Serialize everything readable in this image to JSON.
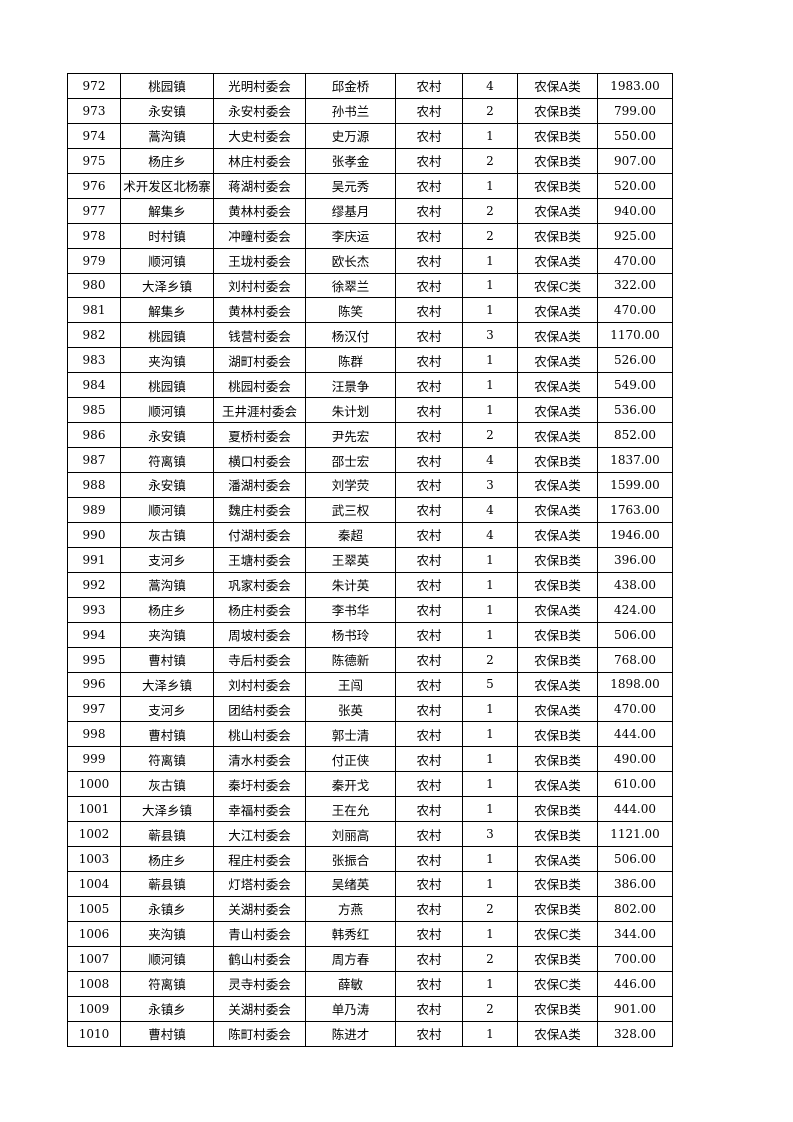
{
  "table": {
    "rows": [
      [
        "972",
        "桃园镇",
        "光明村委会",
        "邱金桥",
        "农村",
        "4",
        "农保A类",
        "1983.00"
      ],
      [
        "973",
        "永安镇",
        "永安村委会",
        "孙书兰",
        "农村",
        "2",
        "农保B类",
        "799.00"
      ],
      [
        "974",
        "蒿沟镇",
        "大史村委会",
        "史万源",
        "农村",
        "1",
        "农保B类",
        "550.00"
      ],
      [
        "975",
        "杨庄乡",
        "林庄村委会",
        "张孝金",
        "农村",
        "2",
        "农保B类",
        "907.00"
      ],
      [
        "976",
        "术开发区北杨寨",
        "蒋湖村委会",
        "吴元秀",
        "农村",
        "1",
        "农保B类",
        "520.00"
      ],
      [
        "977",
        "解集乡",
        "黄林村委会",
        "缪基月",
        "农村",
        "2",
        "农保A类",
        "940.00"
      ],
      [
        "978",
        "时村镇",
        "冲疃村委会",
        "李庆运",
        "农村",
        "2",
        "农保B类",
        "925.00"
      ],
      [
        "979",
        "顺河镇",
        "王垅村委会",
        "欧长杰",
        "农村",
        "1",
        "农保A类",
        "470.00"
      ],
      [
        "980",
        "大泽乡镇",
        "刘村村委会",
        "徐翠兰",
        "农村",
        "1",
        "农保C类",
        "322.00"
      ],
      [
        "981",
        "解集乡",
        "黄林村委会",
        "陈笑",
        "农村",
        "1",
        "农保A类",
        "470.00"
      ],
      [
        "982",
        "桃园镇",
        "钱营村委会",
        "杨汉付",
        "农村",
        "3",
        "农保A类",
        "1170.00"
      ],
      [
        "983",
        "夹沟镇",
        "湖町村委会",
        "陈群",
        "农村",
        "1",
        "农保A类",
        "526.00"
      ],
      [
        "984",
        "桃园镇",
        "桃园村委会",
        "汪景争",
        "农村",
        "1",
        "农保A类",
        "549.00"
      ],
      [
        "985",
        "顺河镇",
        "王井涯村委会",
        "朱计划",
        "农村",
        "1",
        "农保A类",
        "536.00"
      ],
      [
        "986",
        "永安镇",
        "夏桥村委会",
        "尹先宏",
        "农村",
        "2",
        "农保A类",
        "852.00"
      ],
      [
        "987",
        "符离镇",
        "横口村委会",
        "邵士宏",
        "农村",
        "4",
        "农保B类",
        "1837.00"
      ],
      [
        "988",
        "永安镇",
        "潘湖村委会",
        "刘学荧",
        "农村",
        "3",
        "农保A类",
        "1599.00"
      ],
      [
        "989",
        "顺河镇",
        "魏庄村委会",
        "武三权",
        "农村",
        "4",
        "农保A类",
        "1763.00"
      ],
      [
        "990",
        "灰古镇",
        "付湖村委会",
        "秦超",
        "农村",
        "4",
        "农保A类",
        "1946.00"
      ],
      [
        "991",
        "支河乡",
        "王塘村委会",
        "王翠英",
        "农村",
        "1",
        "农保B类",
        "396.00"
      ],
      [
        "992",
        "蒿沟镇",
        "巩家村委会",
        "朱计英",
        "农村",
        "1",
        "农保B类",
        "438.00"
      ],
      [
        "993",
        "杨庄乡",
        "杨庄村委会",
        "李书华",
        "农村",
        "1",
        "农保A类",
        "424.00"
      ],
      [
        "994",
        "夹沟镇",
        "周坡村委会",
        "杨书玲",
        "农村",
        "1",
        "农保B类",
        "506.00"
      ],
      [
        "995",
        "曹村镇",
        "寺后村委会",
        "陈德新",
        "农村",
        "2",
        "农保B类",
        "768.00"
      ],
      [
        "996",
        "大泽乡镇",
        "刘村村委会",
        "王闯",
        "农村",
        "5",
        "农保A类",
        "1898.00"
      ],
      [
        "997",
        "支河乡",
        "团结村委会",
        "张英",
        "农村",
        "1",
        "农保A类",
        "470.00"
      ],
      [
        "998",
        "曹村镇",
        "桃山村委会",
        "郭士清",
        "农村",
        "1",
        "农保B类",
        "444.00"
      ],
      [
        "999",
        "符离镇",
        "清水村委会",
        "付正侠",
        "农村",
        "1",
        "农保B类",
        "490.00"
      ],
      [
        "1000",
        "灰古镇",
        "秦圩村委会",
        "秦开戈",
        "农村",
        "1",
        "农保A类",
        "610.00"
      ],
      [
        "1001",
        "大泽乡镇",
        "幸福村委会",
        "王在允",
        "农村",
        "1",
        "农保B类",
        "444.00"
      ],
      [
        "1002",
        "蕲县镇",
        "大江村委会",
        "刘丽高",
        "农村",
        "3",
        "农保B类",
        "1121.00"
      ],
      [
        "1003",
        "杨庄乡",
        "程庄村委会",
        "张振合",
        "农村",
        "1",
        "农保A类",
        "506.00"
      ],
      [
        "1004",
        "蕲县镇",
        "灯塔村委会",
        "吴绪英",
        "农村",
        "1",
        "农保B类",
        "386.00"
      ],
      [
        "1005",
        "永镇乡",
        "关湖村委会",
        "方燕",
        "农村",
        "2",
        "农保B类",
        "802.00"
      ],
      [
        "1006",
        "夹沟镇",
        "青山村委会",
        "韩秀红",
        "农村",
        "1",
        "农保C类",
        "344.00"
      ],
      [
        "1007",
        "顺河镇",
        "鹤山村委会",
        "周方春",
        "农村",
        "2",
        "农保B类",
        "700.00"
      ],
      [
        "1008",
        "符离镇",
        "灵寺村委会",
        "薛敏",
        "农村",
        "1",
        "农保C类",
        "446.00"
      ],
      [
        "1009",
        "永镇乡",
        "关湖村委会",
        "单乃涛",
        "农村",
        "2",
        "农保B类",
        "901.00"
      ],
      [
        "1010",
        "曹村镇",
        "陈町村委会",
        "陈进才",
        "农村",
        "1",
        "农保A类",
        "328.00"
      ]
    ]
  }
}
